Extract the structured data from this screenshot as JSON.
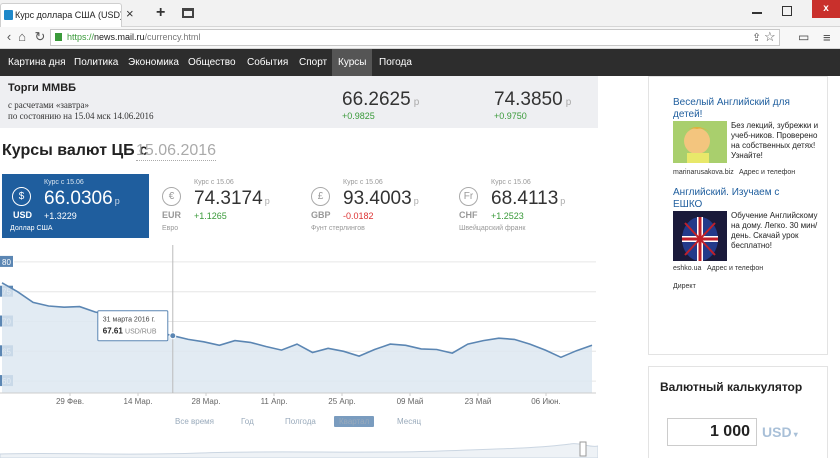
{
  "browser": {
    "tab_title": "Курс доллара США (USD) на се",
    "url_scheme": "https://",
    "url_host": "news.mail.ru",
    "url_path": "/currency.html",
    "close_label": "×",
    "newtab_label": "+",
    "window_close_label": "x"
  },
  "nav": [
    "Картина дня",
    "Политика",
    "Экономика",
    "Общество",
    "События",
    "Спорт",
    "Курсы",
    "Погода"
  ],
  "mmvb": {
    "title": "Торги ММВБ",
    "subtitle1": "с расчетами «завтра»",
    "subtitle2": "по состоянию на 15.04 мск 14.06.2016",
    "quotes": [
      {
        "value": "66.2625",
        "currency": "р",
        "change": "+0.9825"
      },
      {
        "value": "74.3850",
        "currency": "р",
        "change": "+0.9750"
      }
    ]
  },
  "rates": {
    "title": "Курсы валют ЦБ с",
    "date": "15.06.2016",
    "cards": [
      {
        "symbol": "$",
        "code": "USD",
        "name": "Доллар США",
        "label": "Курс с 15.06",
        "value": "66.0306",
        "currency": "р",
        "change": "+1.3229",
        "color": "#1f5e9e"
      },
      {
        "symbol": "€",
        "code": "EUR",
        "name": "Евро",
        "label": "Курс с 15.06",
        "value": "74.3174",
        "currency": "р",
        "change": "+1.1265"
      },
      {
        "symbol": "£",
        "code": "GBP",
        "name": "Фунт стерлингов",
        "label": "Курс с 15.06",
        "value": "93.4003",
        "currency": "р",
        "change": "-0.0182"
      },
      {
        "symbol": "Fr",
        "code": "CHF",
        "name": "Швейцарский франк",
        "label": "Курс с 15.06",
        "value": "68.4113",
        "currency": "р",
        "change": "+1.2523"
      }
    ]
  },
  "chart_data": {
    "type": "area",
    "ylim": [
      58,
      82
    ],
    "y_ticks": [
      "80",
      "75",
      "70",
      "65",
      "60"
    ],
    "x_ticks": [
      "29 Фев.",
      "14 Мар.",
      "28 Мар.",
      "11 Апр.",
      "25 Апр.",
      "09 Май",
      "23 Май",
      "06 Июн."
    ],
    "series": [
      {
        "values": [
          76.5,
          75.0,
          73.2,
          72.6,
          72.4,
          72.5,
          71.6,
          71.0,
          70.0,
          69.0,
          68.2,
          67.61,
          67.0,
          66.6,
          66.0,
          66.8,
          66.5,
          65.8,
          65.2,
          66.2,
          64.8,
          65.5,
          65.0,
          64.2,
          65.3,
          66.2,
          66.0,
          65.4,
          65.3,
          64.7,
          66.2,
          66.8,
          67.2,
          67.0,
          66.2,
          65.2,
          64.0,
          65.1,
          66.03
        ]
      }
    ],
    "tooltip": {
      "date": "31 марта 2016 г.",
      "value": "67.61",
      "unit": "USD/RUB"
    },
    "color": "#5b86b3"
  },
  "ranges": [
    "Все время",
    "Год",
    "Полгода",
    "Квартал",
    "Месяц"
  ],
  "active_range": "Квартал",
  "ads": [
    {
      "title": "Веселый Английский для детей!",
      "text": "Без лекций, зубрежки и учеб-ников. Проверено на собственных детях! Узнайте!",
      "source": "marinarusakova.biz",
      "link": "Адрес и телефон"
    },
    {
      "title": "Английский. Изучаем с ЕШКО",
      "text": "Обучение Английскому на дому. Легко. 30 мин/день. Скачай урок бесплатно!",
      "source": "eshko.ua",
      "link": "Адрес и телефон"
    }
  ],
  "direct_label": "Директ",
  "calc": {
    "title": "Валютный калькулятор",
    "amount": "1 000",
    "currency": "USD"
  }
}
